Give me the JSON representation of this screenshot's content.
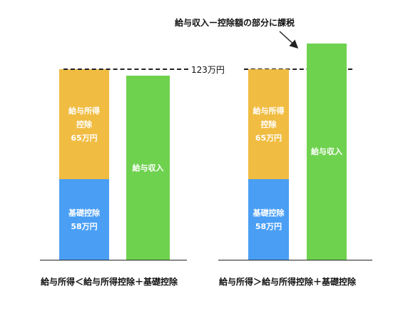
{
  "left": {
    "deduction_label_lines": [
      "給与所得",
      "控除",
      "65万円"
    ],
    "basic_label_lines": [
      "基礎控除",
      "58万円"
    ],
    "income_label": "給与収入",
    "caption": "給与所得＜給与所得控除＋基礎控除"
  },
  "right": {
    "deduction_label_lines": [
      "給与所得",
      "控除",
      "65万円"
    ],
    "basic_label_lines": [
      "基礎控除",
      "58万円"
    ],
    "income_label": "給与収入",
    "caption": "給与所得＞給与所得控除＋基礎控除",
    "annotation": "給与収入ー控除額の部分に課税"
  },
  "threshold_label": "123万円",
  "colors": {
    "deduction": "#f0bc41",
    "basic": "#4a9ff5",
    "income": "#6fd24f"
  }
}
